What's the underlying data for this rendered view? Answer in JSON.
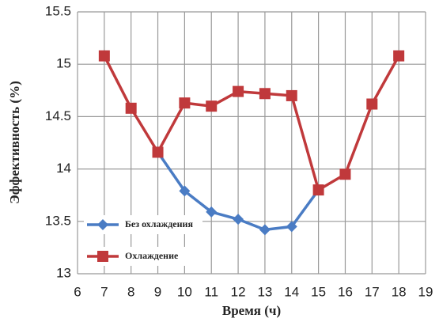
{
  "chart_data": {
    "type": "line",
    "xlabel": "Время (ч)",
    "ylabel": "Эффективность (%)",
    "x": [
      7,
      8,
      9,
      10,
      11,
      12,
      13,
      14,
      15,
      16,
      17,
      18
    ],
    "series": [
      {
        "name": "Без охлаждения",
        "color": "#4a7cc4",
        "marker": "diamond",
        "values": [
          null,
          null,
          14.16,
          13.79,
          13.59,
          13.52,
          13.42,
          13.45,
          13.8,
          null,
          null,
          null
        ]
      },
      {
        "name": "Охлаждение",
        "color": "#c0393b",
        "marker": "square",
        "values": [
          15.08,
          14.58,
          14.16,
          14.63,
          14.6,
          14.74,
          14.72,
          14.7,
          13.8,
          13.95,
          14.62,
          15.08
        ]
      }
    ],
    "xlim": [
      6,
      19
    ],
    "xticks": [
      6,
      7,
      8,
      9,
      10,
      11,
      12,
      13,
      14,
      15,
      16,
      17,
      18,
      19
    ],
    "ylim": [
      13,
      15.5
    ],
    "yticks": [
      13,
      13.5,
      14,
      14.5,
      15,
      15.5
    ],
    "grid": true,
    "legend": "lower left"
  }
}
